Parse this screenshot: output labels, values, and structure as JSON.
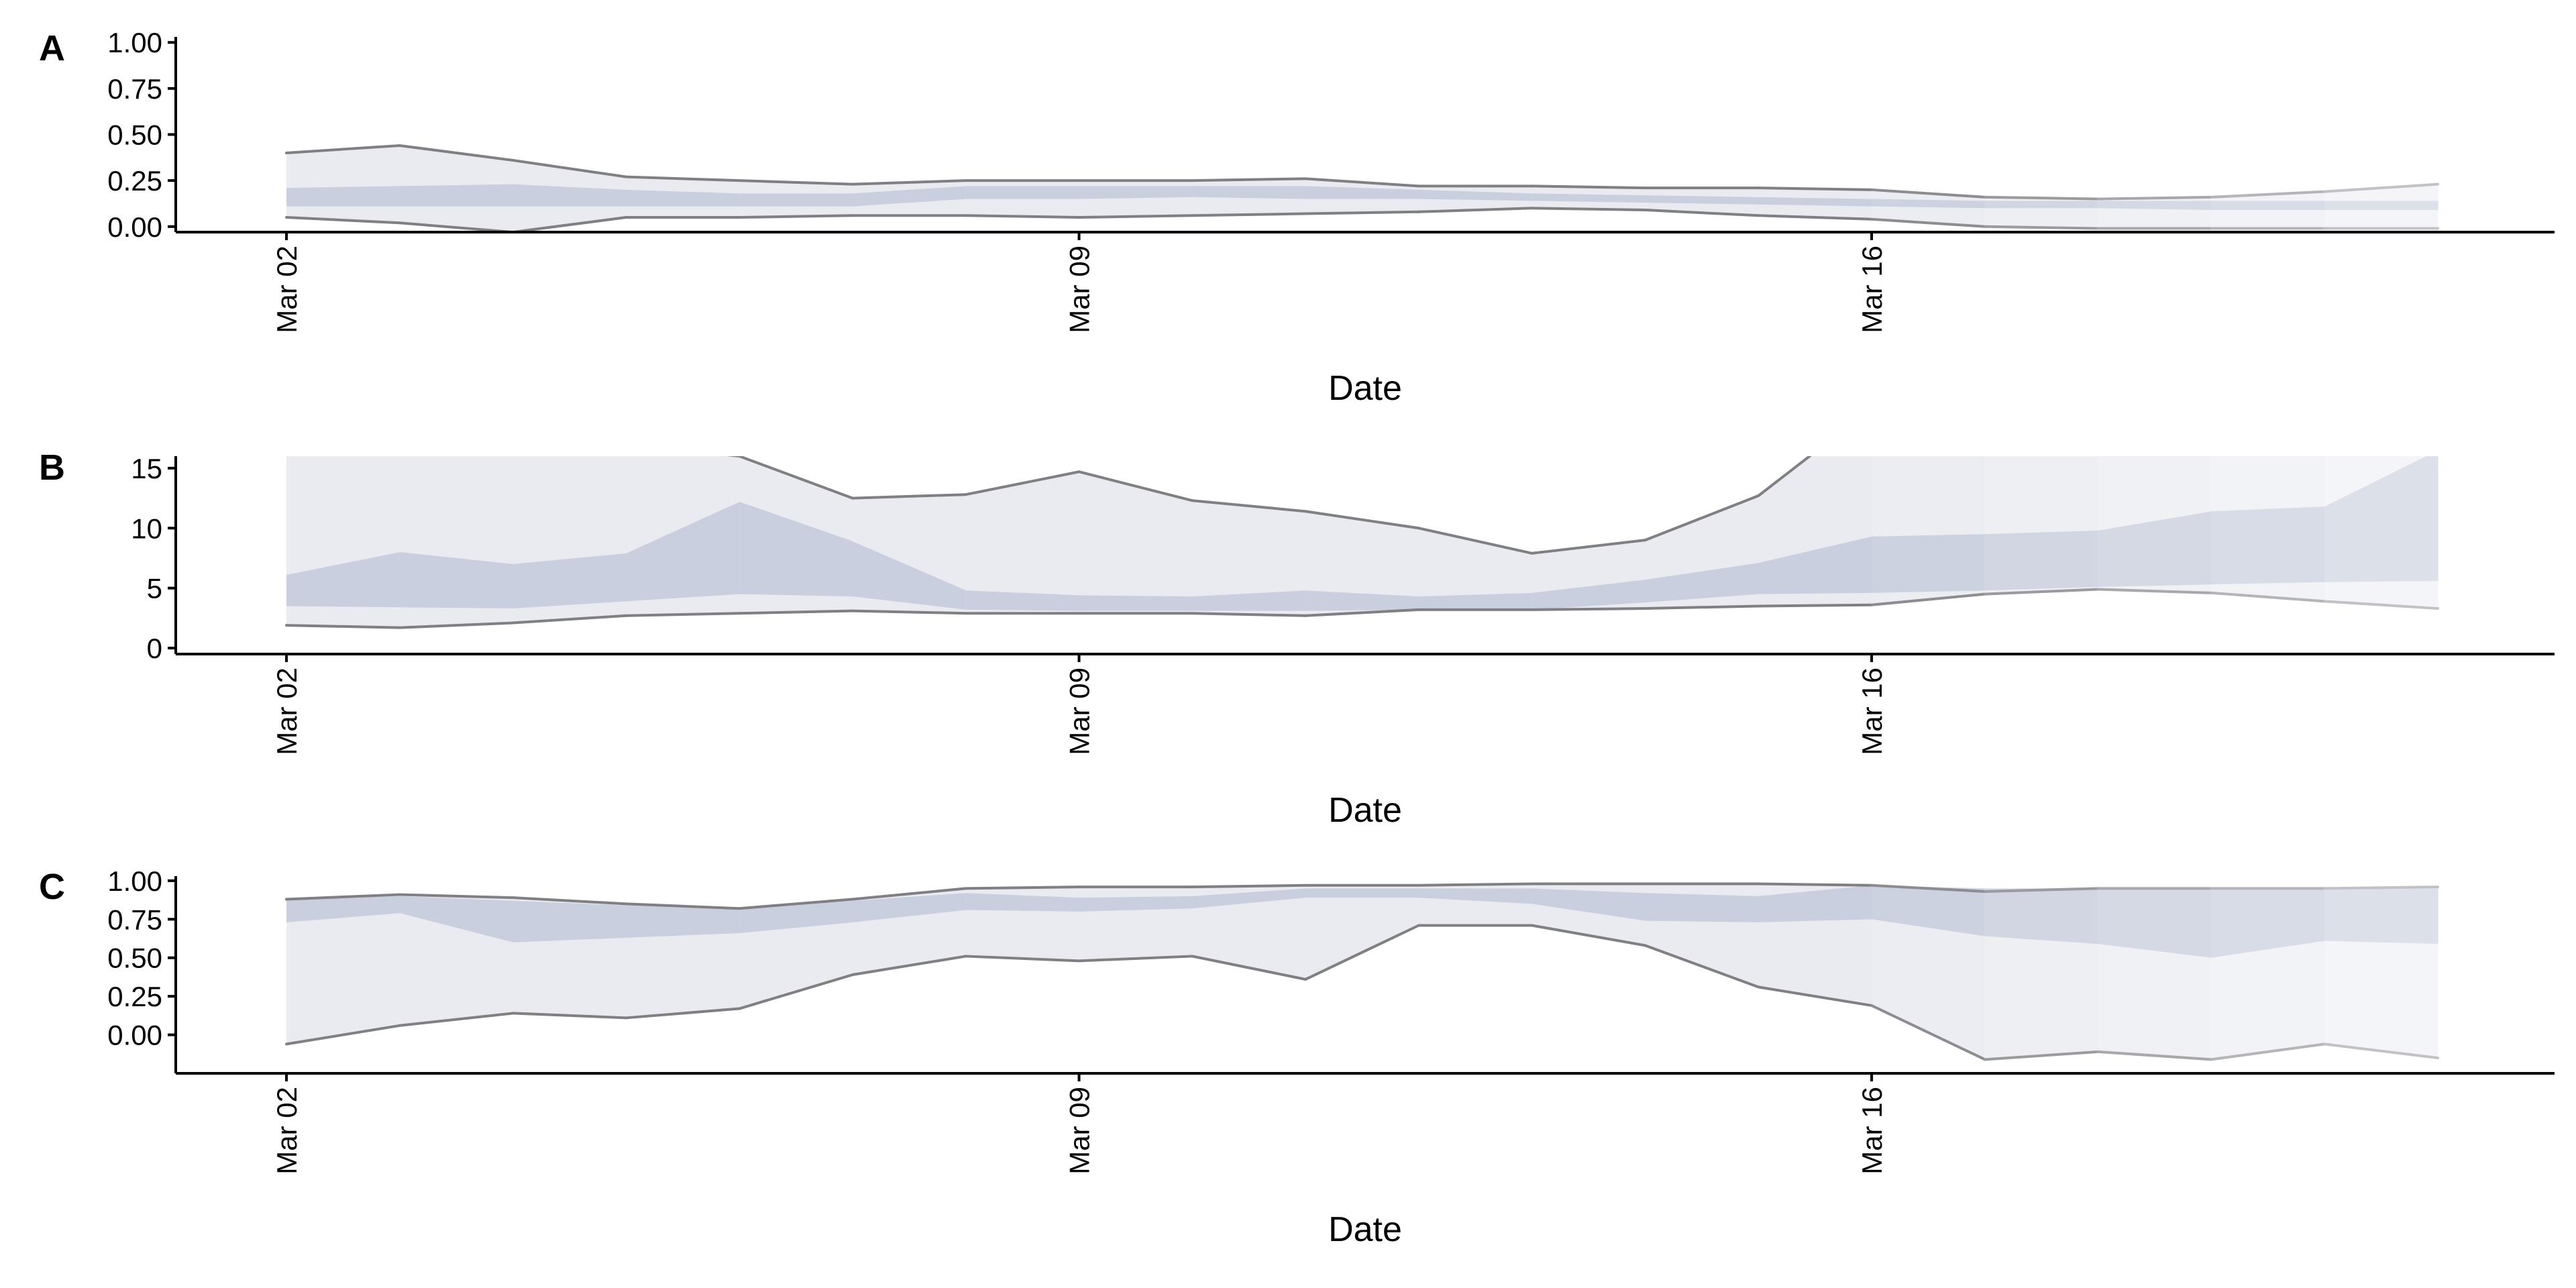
{
  "chart_data": [
    {
      "type": "area",
      "panel_label": "A",
      "xlabel": "Date",
      "ylabel": "",
      "x": [
        "Mar 02",
        "Mar 03",
        "Mar 04",
        "Mar 05",
        "Mar 06",
        "Mar 07",
        "Mar 08",
        "Mar 09",
        "Mar 10",
        "Mar 11",
        "Mar 12",
        "Mar 13",
        "Mar 14",
        "Mar 15",
        "Mar 16",
        "Mar 17",
        "Mar 18",
        "Mar 19",
        "Mar 20",
        "Mar 21"
      ],
      "x_ticks": [
        "Mar 02",
        "Mar 09",
        "Mar 16"
      ],
      "ylim": [
        -0.03,
        1.03
      ],
      "y_ticks": [
        0,
        0.25,
        0.5,
        0.75,
        1
      ],
      "y_tick_labels": [
        "0.00",
        "0.25",
        "0.50",
        "0.75",
        "1.00"
      ],
      "outer_upper": [
        0.4,
        0.44,
        0.36,
        0.27,
        0.25,
        0.23,
        0.25,
        0.25,
        0.25,
        0.26,
        0.22,
        0.22,
        0.21,
        0.21,
        0.2,
        0.16,
        0.15,
        0.16,
        0.19,
        0.23
      ],
      "outer_lower": [
        0.05,
        0.02,
        -0.03,
        0.05,
        0.05,
        0.06,
        0.06,
        0.05,
        0.06,
        0.07,
        0.08,
        0.1,
        0.09,
        0.06,
        0.04,
        0.0,
        -0.01,
        -0.01,
        -0.01,
        -0.01
      ],
      "inner_upper": [
        0.21,
        0.22,
        0.23,
        0.2,
        0.18,
        0.18,
        0.22,
        0.22,
        0.22,
        0.22,
        0.2,
        0.18,
        0.17,
        0.16,
        0.15,
        0.14,
        0.14,
        0.14,
        0.14,
        0.14
      ],
      "inner_lower": [
        0.11,
        0.11,
        0.11,
        0.11,
        0.11,
        0.11,
        0.15,
        0.15,
        0.16,
        0.15,
        0.15,
        0.14,
        0.13,
        0.12,
        0.11,
        0.1,
        0.1,
        0.09,
        0.09,
        0.09
      ],
      "grid": false,
      "legend": "none"
    },
    {
      "type": "area",
      "panel_label": "B",
      "xlabel": "Date",
      "ylabel": "",
      "x": [
        "Mar 02",
        "Mar 03",
        "Mar 04",
        "Mar 05",
        "Mar 06",
        "Mar 07",
        "Mar 08",
        "Mar 09",
        "Mar 10",
        "Mar 11",
        "Mar 12",
        "Mar 13",
        "Mar 14",
        "Mar 15",
        "Mar 16",
        "Mar 17",
        "Mar 18",
        "Mar 19",
        "Mar 20",
        "Mar 21"
      ],
      "x_ticks": [
        "Mar 02",
        "Mar 09",
        "Mar 16"
      ],
      "ylim": [
        -0.5,
        16
      ],
      "y_ticks": [
        0,
        5,
        10,
        15
      ],
      "y_tick_labels": [
        "0",
        "5",
        "10",
        "15"
      ],
      "outer_upper": [
        17,
        17,
        16.2,
        17,
        16,
        12.5,
        12.8,
        14.7,
        12.3,
        11.4,
        10.0,
        7.9,
        9.0,
        12.7,
        20,
        20,
        20,
        20,
        20,
        20
      ],
      "outer_lower": [
        1.9,
        1.7,
        2.1,
        2.7,
        2.9,
        3.1,
        2.9,
        2.9,
        2.9,
        2.7,
        3.2,
        3.2,
        3.3,
        3.5,
        3.6,
        4.5,
        4.9,
        4.6,
        3.9,
        3.3
      ],
      "inner_upper": [
        6.1,
        8.0,
        7.0,
        7.9,
        12.2,
        8.9,
        4.8,
        4.4,
        4.3,
        4.8,
        4.3,
        4.6,
        5.7,
        7.1,
        9.3,
        9.5,
        9.8,
        11.4,
        11.8,
        16.5
      ],
      "inner_lower": [
        3.5,
        3.4,
        3.3,
        3.9,
        4.5,
        4.3,
        3.2,
        3.1,
        3.1,
        3.1,
        3.2,
        3.2,
        3.8,
        4.5,
        4.6,
        4.8,
        5.1,
        5.3,
        5.5,
        5.6
      ],
      "grid": false,
      "legend": "none"
    },
    {
      "type": "area",
      "panel_label": "C",
      "xlabel": "Date",
      "ylabel": "",
      "x": [
        "Mar 02",
        "Mar 03",
        "Mar 04",
        "Mar 05",
        "Mar 06",
        "Mar 07",
        "Mar 08",
        "Mar 09",
        "Mar 10",
        "Mar 11",
        "Mar 12",
        "Mar 13",
        "Mar 14",
        "Mar 15",
        "Mar 16",
        "Mar 17",
        "Mar 18",
        "Mar 19",
        "Mar 20",
        "Mar 21"
      ],
      "x_ticks": [
        "Mar 02",
        "Mar 09",
        "Mar 16"
      ],
      "ylim": [
        -0.25,
        1.03
      ],
      "y_ticks": [
        0,
        0.25,
        0.5,
        0.75,
        1
      ],
      "y_tick_labels": [
        "0.00",
        "0.25",
        "0.50",
        "0.75",
        "1.00"
      ],
      "outer_upper": [
        0.88,
        0.91,
        0.89,
        0.85,
        0.82,
        0.88,
        0.95,
        0.96,
        0.96,
        0.97,
        0.97,
        0.98,
        0.98,
        0.98,
        0.97,
        0.93,
        0.95,
        0.95,
        0.95,
        0.96
      ],
      "outer_lower": [
        -0.06,
        0.06,
        0.14,
        0.11,
        0.17,
        0.39,
        0.51,
        0.48,
        0.51,
        0.36,
        0.71,
        0.71,
        0.58,
        0.31,
        0.19,
        -0.16,
        -0.11,
        -0.16,
        -0.06,
        -0.15
      ],
      "inner_upper": [
        0.88,
        0.9,
        0.87,
        0.84,
        0.82,
        0.87,
        0.92,
        0.89,
        0.9,
        0.95,
        0.95,
        0.95,
        0.92,
        0.9,
        0.97,
        0.95,
        0.95,
        0.95,
        0.95,
        0.95
      ],
      "inner_lower": [
        0.73,
        0.79,
        0.6,
        0.63,
        0.66,
        0.73,
        0.81,
        0.8,
        0.82,
        0.89,
        0.89,
        0.85,
        0.74,
        0.73,
        0.75,
        0.64,
        0.59,
        0.5,
        0.61,
        0.59
      ],
      "grid": false,
      "legend": "none"
    }
  ],
  "colors": {
    "outer_band": "#e9ebf0",
    "inner_band": "#c9cfde",
    "bound_line": "#7f7f84",
    "axis": "#000000",
    "fade_target": "#ffffff"
  }
}
